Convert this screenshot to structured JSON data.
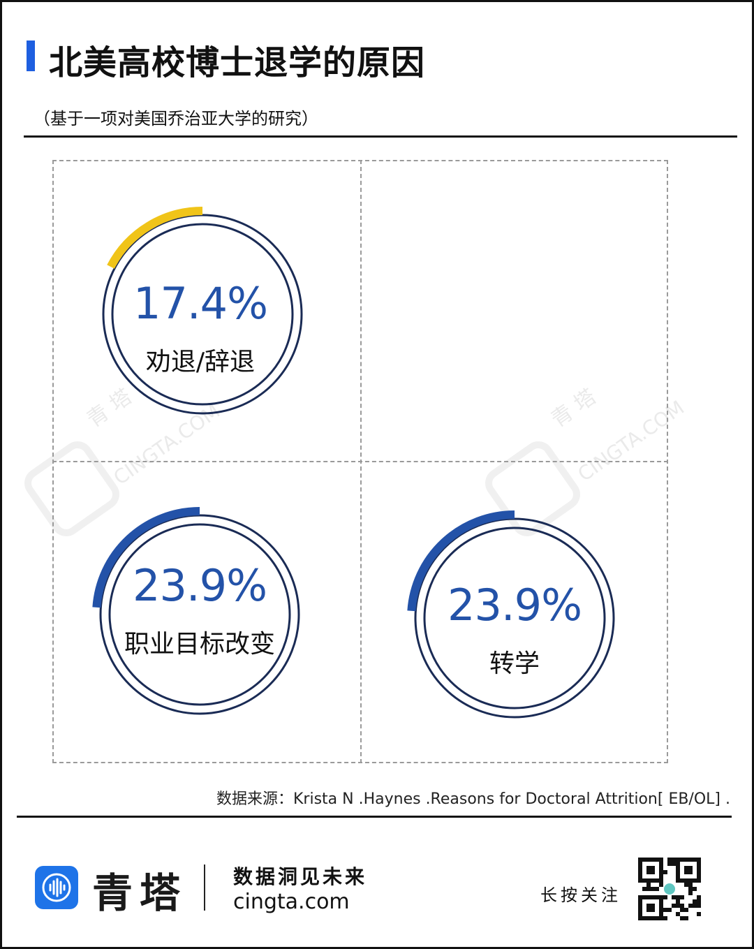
{
  "title": "北美高校博士退学的原因",
  "subtitle": "（基于一项对美国乔治亚大学的研究）",
  "chart_data": {
    "type": "radial-progress",
    "title": "北美高校博士退学的原因",
    "subtitle": "（基于一项对美国乔治亚大学的研究）",
    "items": [
      {
        "label": "劝退/辞退",
        "value": 17.4,
        "value_text": "17.4%",
        "arc_color": "#f0c419"
      },
      {
        "label": "职业目标改变",
        "value": 23.9,
        "value_text": "23.9%",
        "arc_color": "#2352a8"
      },
      {
        "label": "转学",
        "value": 23.9,
        "value_text": "23.9%",
        "arc_color": "#2352a8"
      }
    ],
    "ring_color": "#1a2b55"
  },
  "source": "数据来源：Krista N .Haynes .Reasons for Doctoral Attrition[ EB/OL] .",
  "watermark": {
    "cn": "青 塔",
    "en": "CINGTA.COM"
  },
  "footer": {
    "brand": "青塔",
    "tagline": "数据洞见未来",
    "site": "cingta.com",
    "follow": "长按关注",
    "logo_icon": "sound-wave-icon",
    "qr_icon": "qr-code-icon"
  }
}
